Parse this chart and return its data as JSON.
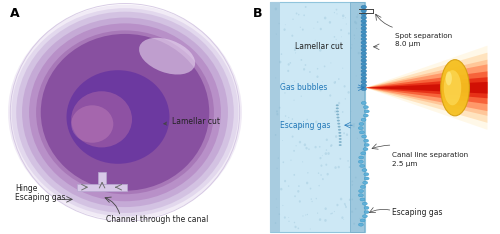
{
  "panel_a_label": "A",
  "panel_b_label": "B",
  "bg_color": "#ffffff",
  "panel_a": {
    "labels": {
      "lamellar_cut": "Lamellar cut",
      "hinge": "Hinge",
      "escaping_gas": "Escaping gas",
      "channel": "Channel through the canal"
    }
  },
  "panel_b": {
    "labels": {
      "lamellar_cut": "Lamellar cut",
      "gas_bubbles": "Gas bubbles",
      "escaping_gas_top": "Escaping gas",
      "spot_sep": "Spot separation\n8.0 μm",
      "canal_sep": "Canal line separation\n2.5 μm",
      "escaping_gas_bot": "Escaping gas"
    }
  }
}
